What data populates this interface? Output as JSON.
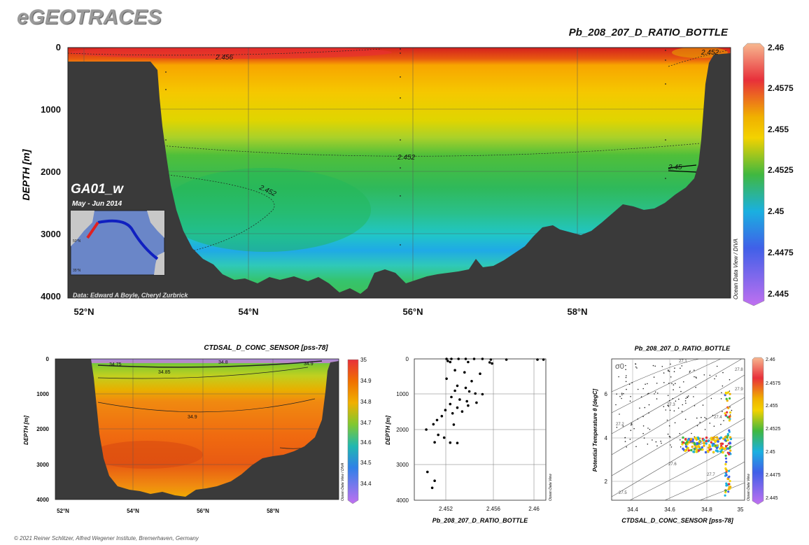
{
  "header": {
    "logo": "eGEOTRACES"
  },
  "footer": {
    "copyright": "© 2021 Reiner Schlitzer, Alfred Wegener Institute, Bremerhaven, Germany"
  },
  "colors": {
    "terrain": "#3a3a3a",
    "background": "#ffffff"
  },
  "chart_data": [
    {
      "type": "heatmap",
      "title": "Pb_208_207_D_RATIO_BOTTLE",
      "ylabel": "DEPTH [m]",
      "x_ticks": [
        "52°N",
        "54°N",
        "56°N",
        "58°N"
      ],
      "y_ticks": [
        "0",
        "1000",
        "2000",
        "3000",
        "4000"
      ],
      "colorbar_ticks": [
        "2.46",
        "2.4575",
        "2.455",
        "2.4525",
        "2.45",
        "2.4475",
        "2.445"
      ],
      "contour_labels": [
        "2.456",
        "2.452",
        "2.452",
        "2.452",
        "2.45"
      ],
      "section_name": "GA01_w",
      "period": "May - Jun 2014",
      "credit": "Data: Edward A Boyle, Cheryl Zurbrick",
      "watermark": "Ocean Data View / DIVA"
    },
    {
      "type": "heatmap",
      "title": "CTDSAL_D_CONC_SENSOR [pss-78]",
      "ylabel": "DEPTH [m]",
      "x_ticks": [
        "52°N",
        "54°N",
        "56°N",
        "58°N"
      ],
      "y_ticks": [
        "0",
        "1000",
        "2000",
        "3000",
        "4000"
      ],
      "colorbar_ticks": [
        "35",
        "34.9",
        "34.8",
        "34.7",
        "34.6",
        "34.5",
        "34.4"
      ],
      "contour_labels": [
        "34.75",
        "34.85",
        "34.8",
        "34.9",
        "34.9"
      ],
      "watermark": "Ocean Data View / DIVA"
    },
    {
      "type": "scatter",
      "xlabel": "Pb_208_207_D_RATIO_BOTTLE",
      "ylabel": "DEPTH [m]",
      "x_ticks": [
        "2.452",
        "2.456",
        "2.46"
      ],
      "y_ticks": [
        "0",
        "1000",
        "2000",
        "3000",
        "4000"
      ],
      "xlim": [
        2.4495,
        2.4605
      ],
      "ylim": [
        0,
        4000
      ],
      "watermark": "Ocean Data View",
      "points": [
        [
          2.4522,
          0
        ],
        [
          2.4526,
          0
        ],
        [
          2.4532,
          0
        ],
        [
          2.4538,
          0
        ],
        [
          2.4545,
          0
        ],
        [
          2.4552,
          0
        ],
        [
          2.4559,
          20
        ],
        [
          2.4572,
          20
        ],
        [
          2.4598,
          20
        ],
        [
          2.4603,
          20
        ],
        [
          2.4523,
          60
        ],
        [
          2.4525,
          90
        ],
        [
          2.454,
          90
        ],
        [
          2.4558,
          100
        ],
        [
          2.456,
          130
        ],
        [
          2.4529,
          320
        ],
        [
          2.4537,
          380
        ],
        [
          2.455,
          420
        ],
        [
          2.4522,
          560
        ],
        [
          2.4543,
          630
        ],
        [
          2.4531,
          760
        ],
        [
          2.4538,
          820
        ],
        [
          2.4529,
          900
        ],
        [
          2.4541,
          920
        ],
        [
          2.4546,
          980
        ],
        [
          2.4552,
          1000
        ],
        [
          2.4526,
          1080
        ],
        [
          2.4533,
          1150
        ],
        [
          2.4539,
          1200
        ],
        [
          2.4547,
          1240
        ],
        [
          2.4525,
          1280
        ],
        [
          2.454,
          1320
        ],
        [
          2.4531,
          1380
        ],
        [
          2.4521,
          1450
        ],
        [
          2.4535,
          1490
        ],
        [
          2.4527,
          1540
        ],
        [
          2.4518,
          1620
        ],
        [
          2.4514,
          1730
        ],
        [
          2.4511,
          1850
        ],
        [
          2.4528,
          1860
        ],
        [
          2.4505,
          2000
        ],
        [
          2.4515,
          2150
        ],
        [
          2.452,
          2230
        ],
        [
          2.4512,
          2360
        ],
        [
          2.4525,
          2370
        ],
        [
          2.4531,
          2380
        ],
        [
          2.4506,
          3200
        ],
        [
          2.4512,
          3450
        ],
        [
          2.451,
          3650
        ]
      ]
    },
    {
      "type": "scatter",
      "title": "Pb_208_207_D_RATIO_BOTTLE",
      "xlabel": "CTDSAL_D_CONC_SENSOR [pss-78]",
      "ylabel": "Potential Temperature θ [degC]",
      "x_ticks": [
        "34.4",
        "34.6",
        "34.8",
        "35"
      ],
      "y_ticks": [
        "2",
        "4",
        "6"
      ],
      "xlim": [
        34.33,
        35.0
      ],
      "ylim": [
        1.2,
        7.8
      ],
      "sigma_label": "σ0",
      "isopycnal_labels": [
        "27.1",
        "27.2",
        "27.3",
        "27.4",
        "27.5",
        "27.6",
        "27.7",
        "27.8",
        "27.9"
      ],
      "colorbar_ticks": [
        "2.46",
        "2.4575",
        "2.455",
        "2.4525",
        "2.45",
        "2.4475",
        "2.445"
      ],
      "watermark": "Ocean Data View"
    }
  ]
}
